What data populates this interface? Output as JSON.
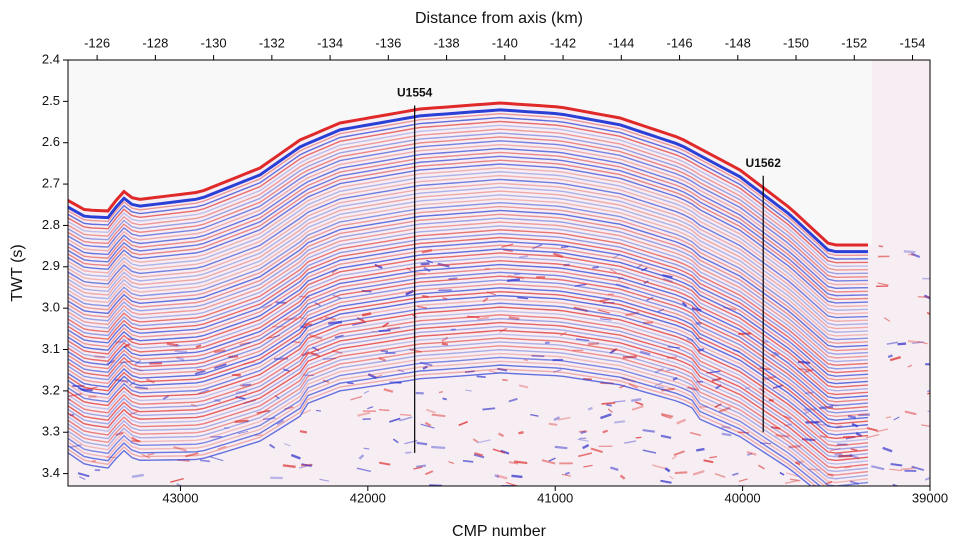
{
  "chart_data": {
    "type": "seismic-section",
    "x_label": "CMP number",
    "x2_label": "Distance from axis (km)",
    "y_label": "TWT (s)",
    "xlim": [
      43600,
      39000
    ],
    "xticks": [
      43000,
      42000,
      41000,
      40000,
      39000
    ],
    "x2lim": [
      -125,
      -154.6
    ],
    "x2ticks": [
      -126,
      -128,
      -130,
      -132,
      -134,
      -136,
      -138,
      -140,
      -142,
      -144,
      -146,
      -148,
      -150,
      -152,
      -154
    ],
    "ylim": [
      2.4,
      3.43
    ],
    "yticks": [
      2.4,
      2.5,
      2.6,
      2.7,
      2.8,
      2.9,
      {
        "value": 3,
        "label": "3.0"
      },
      3.1,
      3.2,
      3.3,
      3.4
    ],
    "annotations": [
      {
        "text": "U1554",
        "x": 41750,
        "y_top": 2.51,
        "y_bottom": 3.35
      },
      {
        "text": "U1562",
        "x": 39890,
        "y_top": 2.68,
        "y_bottom": 3.3
      }
    ]
  }
}
